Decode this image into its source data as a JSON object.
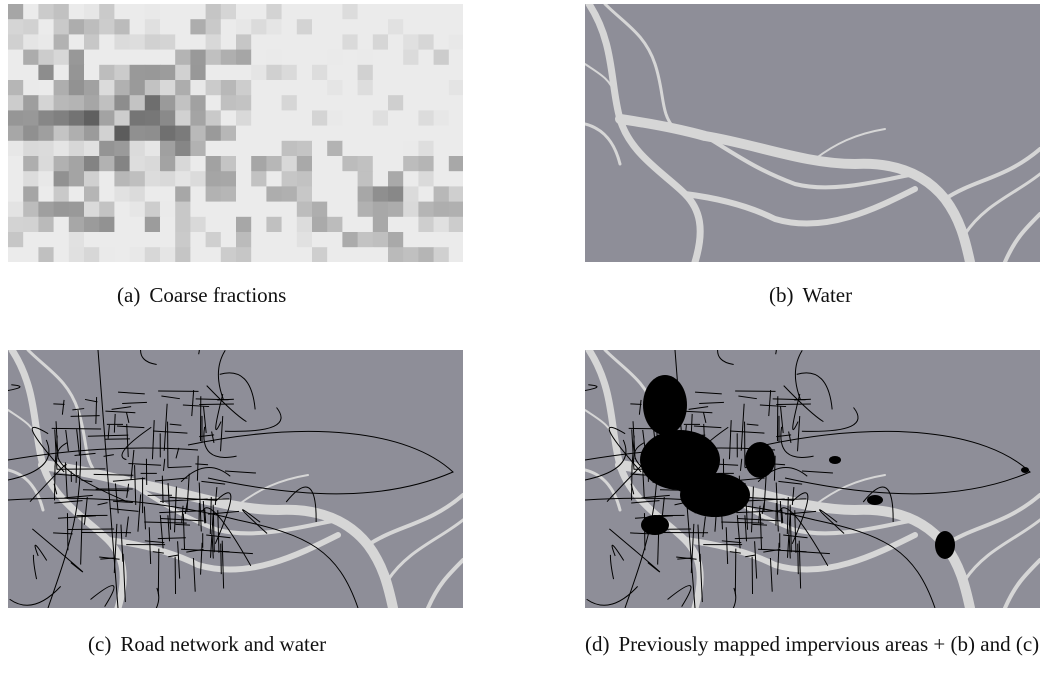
{
  "figure": {
    "panels": [
      {
        "label": "(a)",
        "caption": "Coarse fractions"
      },
      {
        "label": "(b)",
        "caption": "Water"
      },
      {
        "label": "(c)",
        "caption": "Road network and water"
      },
      {
        "label": "(d)",
        "caption": "Previously mapped impervious areas + (b) and (c)"
      }
    ]
  }
}
